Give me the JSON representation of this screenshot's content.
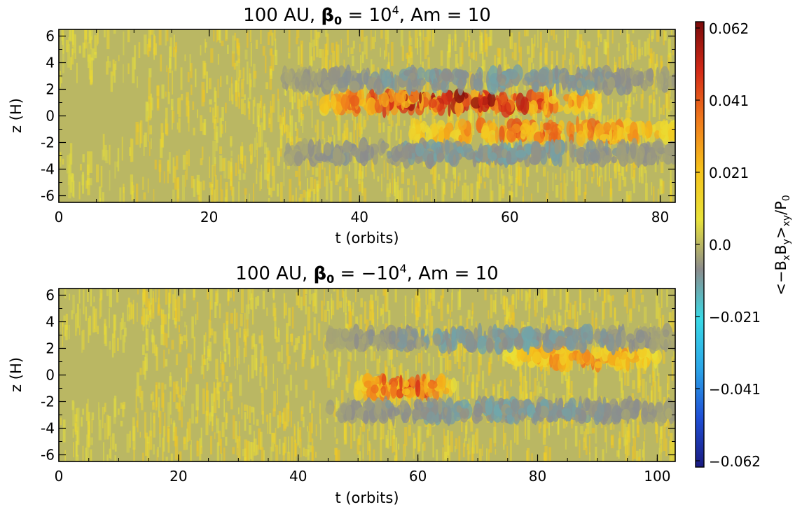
{
  "chart_data": [
    {
      "type": "heatmap",
      "title": "100 AU, β₀ = 10⁴, Am = 10",
      "title_parts": {
        "lead": "100 AU, ",
        "beta": "β",
        "beta_sub": "0",
        "eq": " = 10",
        "exp": "4",
        "tail": ", Am = 10"
      },
      "xlabel": "t (orbits)",
      "ylabel": "z (H)",
      "xlim": [
        0,
        82
      ],
      "ylim": [
        -6.5,
        6.5
      ],
      "xticks": [
        "0",
        "20",
        "40",
        "60",
        "80"
      ],
      "yticks": [
        "6",
        "4",
        "2",
        "0",
        "-2",
        "-4",
        "-6"
      ],
      "features": [
        {
          "t_start": 35,
          "t_end": 72,
          "z": 1.0,
          "peak": 0.062
        },
        {
          "t_start": 47,
          "t_end": 82,
          "z": -1.2,
          "peak": 0.045
        },
        {
          "t_start": 30,
          "t_end": 82,
          "z": 2.7,
          "peak": -0.012
        },
        {
          "t_start": 30,
          "t_end": 82,
          "z": -2.8,
          "peak": -0.012
        }
      ]
    },
    {
      "type": "heatmap",
      "title": "100 AU, β₀ = −10⁴, Am = 10",
      "title_parts": {
        "lead": "100 AU, ",
        "beta": "β",
        "beta_sub": "0",
        "eq": " = −10",
        "exp": "4",
        "tail": ", Am = 10"
      },
      "xlabel": "t (orbits)",
      "ylabel": "z (H)",
      "xlim": [
        0,
        103
      ],
      "ylim": [
        -6.5,
        6.5
      ],
      "xticks": [
        "0",
        "20",
        "40",
        "60",
        "80",
        "100"
      ],
      "yticks": [
        "6",
        "4",
        "2",
        "0",
        "-2",
        "-4",
        "-6"
      ],
      "features": [
        {
          "t_start": 50,
          "t_end": 66,
          "z": -0.9,
          "peak": 0.05
        },
        {
          "t_start": 75,
          "t_end": 100,
          "z": 1.3,
          "peak": 0.038
        },
        {
          "t_start": 45,
          "t_end": 103,
          "z": 2.7,
          "peak": -0.012
        },
        {
          "t_start": 45,
          "t_end": 103,
          "z": -2.7,
          "peak": -0.012
        }
      ]
    }
  ],
  "colorbar": {
    "label_parts": {
      "a": "<−B",
      "s1": "x",
      "b": "B",
      "s2": "y",
      "c": ">",
      "s3": "xy",
      "d": "/P",
      "s4": "0"
    },
    "range": [
      -0.062,
      0.062
    ],
    "ticks": [
      "0.062",
      "0.041",
      "0.021",
      "0.0",
      "−0.021",
      "−0.041",
      "−0.062"
    ],
    "colors": [
      "#1a1a80",
      "#1f4fd6",
      "#2ba6e8",
      "#39d9e6",
      "#8c8c8c",
      "#e8e23a",
      "#f5c21b",
      "#f07b1c",
      "#d42a17",
      "#7a0a0a"
    ]
  }
}
